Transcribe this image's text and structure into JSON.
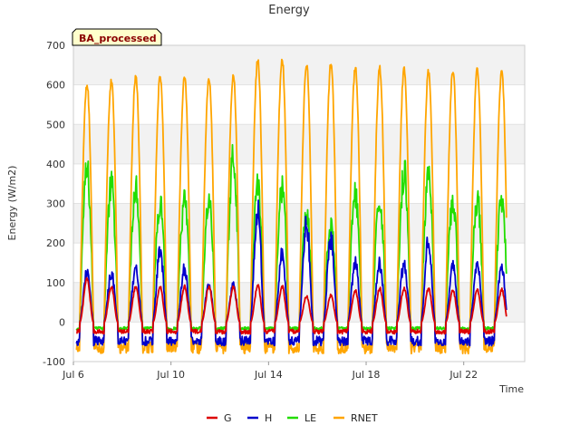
{
  "chart_data": {
    "type": "line",
    "title": "Energy",
    "badge": "BA_processed",
    "xlabel": "Time",
    "ylabel": "Energy (W/m2)",
    "ylim": [
      -100,
      700
    ],
    "xlim": [
      "2024-07-06",
      "2024-07-24"
    ],
    "yticks": [
      -100,
      0,
      100,
      200,
      300,
      400,
      500,
      600,
      700
    ],
    "xticks": [
      {
        "value": "2024-07-06",
        "label": "Jul 6"
      },
      {
        "value": "2024-07-10",
        "label": "Jul 10"
      },
      {
        "value": "2024-07-14",
        "label": "Jul 14"
      },
      {
        "value": "2024-07-18",
        "label": "Jul 18"
      },
      {
        "value": "2024-07-22",
        "label": "Jul 22"
      }
    ],
    "grid": true,
    "legend_position": "bottom",
    "days": [
      "2024-07-06",
      "2024-07-07",
      "2024-07-08",
      "2024-07-09",
      "2024-07-10",
      "2024-07-11",
      "2024-07-12",
      "2024-07-13",
      "2024-07-14",
      "2024-07-15",
      "2024-07-16",
      "2024-07-17",
      "2024-07-18",
      "2024-07-19",
      "2024-07-20",
      "2024-07-21",
      "2024-07-22",
      "2024-07-23"
    ],
    "series": [
      {
        "name": "G",
        "color": "#dd0000",
        "daily_max": [
          110,
          90,
          90,
          88,
          90,
          90,
          88,
          92,
          90,
          65,
          68,
          80,
          85,
          85,
          85,
          80,
          80,
          82
        ],
        "night_min": -30
      },
      {
        "name": "H",
        "color": "#0000cc",
        "daily_max": [
          125,
          125,
          140,
          185,
          135,
          90,
          90,
          285,
          175,
          250,
          215,
          155,
          145,
          150,
          210,
          145,
          140,
          140
        ],
        "night_min": -60
      },
      {
        "name": "LE",
        "color": "#22dd00",
        "daily_max": [
          380,
          345,
          345,
          305,
          305,
          305,
          415,
          350,
          335,
          270,
          240,
          320,
          305,
          380,
          360,
          300,
          310,
          310
        ],
        "night_min": -20
      },
      {
        "name": "RNET",
        "color": "#ffa500",
        "daily_max": [
          600,
          610,
          620,
          622,
          622,
          620,
          620,
          665,
          665,
          650,
          655,
          645,
          640,
          640,
          635,
          640,
          638,
          638
        ],
        "night_min": -80
      }
    ]
  }
}
